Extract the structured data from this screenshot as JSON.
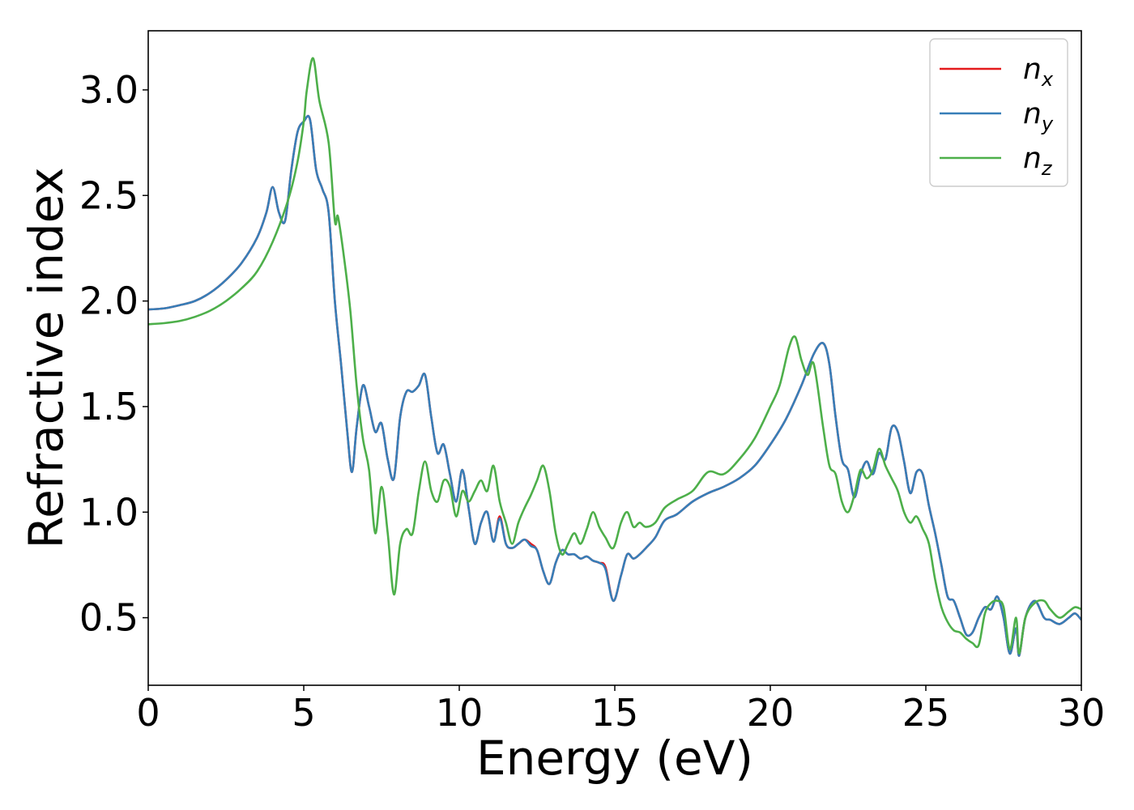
{
  "chart_data": {
    "type": "line",
    "title": "",
    "xlabel": "Energy (eV)",
    "ylabel": "Refractive index",
    "xlim": [
      0,
      30
    ],
    "ylim": [
      0.18,
      3.28
    ],
    "xticks": [
      0,
      5,
      10,
      15,
      20,
      25,
      30
    ],
    "xtick_labels": [
      "0",
      "5",
      "10",
      "15",
      "20",
      "25",
      "30"
    ],
    "yticks": [
      0.5,
      1.0,
      1.5,
      2.0,
      2.5,
      3.0
    ],
    "ytick_labels": [
      "0.5",
      "1.0",
      "1.5",
      "2.0",
      "2.5",
      "3.0"
    ],
    "grid": false,
    "legend_position": "top-right",
    "series": [
      {
        "name": "n",
        "subscript": "x",
        "color": "#e41a1c",
        "x": [
          0,
          0.5,
          1,
          1.5,
          2,
          2.5,
          3,
          3.5,
          3.8,
          4.0,
          4.2,
          4.4,
          4.6,
          4.8,
          5.0,
          5.2,
          5.4,
          5.6,
          5.8,
          6.0,
          6.2,
          6.4,
          6.55,
          6.7,
          6.9,
          7.1,
          7.3,
          7.5,
          7.7,
          7.9,
          8.1,
          8.3,
          8.5,
          8.7,
          8.9,
          9.1,
          9.3,
          9.5,
          9.7,
          9.9,
          10.1,
          10.3,
          10.5,
          10.7,
          10.9,
          11.1,
          11.3,
          11.5,
          11.7,
          11.9,
          12.1,
          12.3,
          12.5,
          12.7,
          12.9,
          13.1,
          13.3,
          13.5,
          13.7,
          13.9,
          14.1,
          14.3,
          14.5,
          14.7,
          14.95,
          15.2,
          15.4,
          15.6,
          15.8,
          16.0,
          16.3,
          16.6,
          17.0,
          17.5,
          18,
          18.5,
          19,
          19.5,
          20,
          20.5,
          21,
          21.4,
          21.7,
          21.9,
          22.1,
          22.3,
          22.5,
          22.7,
          22.9,
          23.1,
          23.3,
          23.5,
          23.7,
          23.9,
          24.1,
          24.3,
          24.5,
          24.7,
          24.9,
          25.1,
          25.3,
          25.5,
          25.7,
          25.9,
          26.1,
          26.3,
          26.5,
          26.7,
          26.9,
          27.1,
          27.3,
          27.5,
          27.7,
          27.9,
          28.0,
          28.2,
          28.5,
          28.8,
          29,
          29.3,
          29.6,
          29.8,
          30
        ],
        "y": [
          1.96,
          1.965,
          1.98,
          2.0,
          2.04,
          2.1,
          2.18,
          2.3,
          2.42,
          2.54,
          2.42,
          2.38,
          2.62,
          2.8,
          2.85,
          2.86,
          2.62,
          2.53,
          2.42,
          2.0,
          1.7,
          1.38,
          1.19,
          1.4,
          1.6,
          1.5,
          1.38,
          1.42,
          1.25,
          1.16,
          1.45,
          1.57,
          1.57,
          1.6,
          1.65,
          1.45,
          1.28,
          1.32,
          1.18,
          1.05,
          1.2,
          1.02,
          0.85,
          0.95,
          1.0,
          0.86,
          0.98,
          0.85,
          0.83,
          0.85,
          0.87,
          0.85,
          0.82,
          0.72,
          0.66,
          0.76,
          0.82,
          0.8,
          0.8,
          0.78,
          0.79,
          0.77,
          0.76,
          0.74,
          0.58,
          0.7,
          0.8,
          0.78,
          0.8,
          0.83,
          0.88,
          0.96,
          0.99,
          1.05,
          1.09,
          1.12,
          1.16,
          1.22,
          1.32,
          1.44,
          1.6,
          1.75,
          1.8,
          1.7,
          1.45,
          1.25,
          1.2,
          1.07,
          1.18,
          1.24,
          1.18,
          1.28,
          1.25,
          1.4,
          1.38,
          1.24,
          1.09,
          1.19,
          1.18,
          1.03,
          0.9,
          0.75,
          0.6,
          0.58,
          0.5,
          0.42,
          0.43,
          0.5,
          0.55,
          0.54,
          0.6,
          0.5,
          0.33,
          0.45,
          0.32,
          0.5,
          0.58,
          0.5,
          0.49,
          0.47,
          0.5,
          0.52,
          0.49
        ]
      },
      {
        "name": "n",
        "subscript": "y",
        "color": "#377eb8",
        "x": [
          0,
          0.5,
          1,
          1.5,
          2,
          2.5,
          3,
          3.5,
          3.8,
          4.0,
          4.2,
          4.4,
          4.6,
          4.8,
          5.0,
          5.2,
          5.4,
          5.6,
          5.8,
          6.0,
          6.2,
          6.4,
          6.55,
          6.7,
          6.9,
          7.1,
          7.3,
          7.5,
          7.7,
          7.9,
          8.1,
          8.3,
          8.5,
          8.7,
          8.9,
          9.1,
          9.3,
          9.5,
          9.7,
          9.9,
          10.1,
          10.3,
          10.5,
          10.7,
          10.9,
          11.1,
          11.3,
          11.5,
          11.7,
          11.9,
          12.1,
          12.3,
          12.5,
          12.7,
          12.9,
          13.1,
          13.3,
          13.5,
          13.7,
          13.9,
          14.1,
          14.3,
          14.5,
          14.7,
          14.95,
          15.2,
          15.4,
          15.6,
          15.8,
          16.0,
          16.3,
          16.6,
          17.0,
          17.5,
          18,
          18.5,
          19,
          19.5,
          20,
          20.5,
          21,
          21.4,
          21.7,
          21.9,
          22.1,
          22.3,
          22.5,
          22.7,
          22.9,
          23.1,
          23.3,
          23.5,
          23.7,
          23.9,
          24.1,
          24.3,
          24.5,
          24.7,
          24.9,
          25.1,
          25.3,
          25.5,
          25.7,
          25.9,
          26.1,
          26.3,
          26.5,
          26.7,
          26.9,
          27.1,
          27.3,
          27.5,
          27.7,
          27.9,
          28.0,
          28.2,
          28.5,
          28.8,
          29,
          29.3,
          29.6,
          29.8,
          30
        ],
        "y": [
          1.96,
          1.965,
          1.98,
          2.0,
          2.04,
          2.1,
          2.18,
          2.3,
          2.42,
          2.54,
          2.42,
          2.38,
          2.62,
          2.8,
          2.85,
          2.86,
          2.62,
          2.53,
          2.42,
          2.0,
          1.7,
          1.38,
          1.19,
          1.4,
          1.6,
          1.5,
          1.38,
          1.42,
          1.25,
          1.16,
          1.45,
          1.57,
          1.57,
          1.6,
          1.65,
          1.45,
          1.28,
          1.32,
          1.18,
          1.05,
          1.2,
          1.02,
          0.85,
          0.95,
          1.0,
          0.86,
          0.97,
          0.85,
          0.83,
          0.85,
          0.87,
          0.84,
          0.82,
          0.72,
          0.66,
          0.76,
          0.82,
          0.8,
          0.8,
          0.78,
          0.79,
          0.77,
          0.76,
          0.73,
          0.58,
          0.7,
          0.8,
          0.78,
          0.8,
          0.83,
          0.88,
          0.96,
          0.99,
          1.05,
          1.09,
          1.12,
          1.16,
          1.22,
          1.32,
          1.44,
          1.6,
          1.75,
          1.8,
          1.7,
          1.45,
          1.25,
          1.2,
          1.07,
          1.18,
          1.24,
          1.18,
          1.28,
          1.25,
          1.4,
          1.38,
          1.24,
          1.09,
          1.19,
          1.18,
          1.03,
          0.9,
          0.75,
          0.6,
          0.58,
          0.5,
          0.42,
          0.43,
          0.5,
          0.55,
          0.54,
          0.6,
          0.5,
          0.33,
          0.45,
          0.32,
          0.5,
          0.58,
          0.5,
          0.49,
          0.47,
          0.5,
          0.52,
          0.49
        ]
      },
      {
        "name": "n",
        "subscript": "z",
        "color": "#4daf4a",
        "x": [
          0,
          0.5,
          1,
          1.5,
          2,
          2.5,
          3,
          3.5,
          4.0,
          4.5,
          4.8,
          5.0,
          5.1,
          5.3,
          5.5,
          5.8,
          6.0,
          6.1,
          6.3,
          6.5,
          6.7,
          6.9,
          7.1,
          7.3,
          7.5,
          7.7,
          7.9,
          8.1,
          8.3,
          8.5,
          8.7,
          8.9,
          9.1,
          9.3,
          9.5,
          9.7,
          9.9,
          10.1,
          10.3,
          10.5,
          10.7,
          10.9,
          11.1,
          11.3,
          11.5,
          11.7,
          11.9,
          12.1,
          12.3,
          12.5,
          12.7,
          12.9,
          13.1,
          13.3,
          13.5,
          13.7,
          13.9,
          14.1,
          14.3,
          14.5,
          14.7,
          14.95,
          15.2,
          15.4,
          15.6,
          15.8,
          16.0,
          16.3,
          16.6,
          17.0,
          17.5,
          18,
          18.5,
          19,
          19.5,
          20,
          20.3,
          20.6,
          20.8,
          21.0,
          21.2,
          21.4,
          21.7,
          21.9,
          22.1,
          22.3,
          22.5,
          22.7,
          22.9,
          23.1,
          23.3,
          23.5,
          23.7,
          23.9,
          24.1,
          24.3,
          24.5,
          24.7,
          24.9,
          25.1,
          25.3,
          25.5,
          25.7,
          25.9,
          26.1,
          26.3,
          26.5,
          26.7,
          26.9,
          27.1,
          27.3,
          27.5,
          27.7,
          27.9,
          28.0,
          28.2,
          28.5,
          28.8,
          29,
          29.3,
          29.6,
          29.8,
          30
        ],
        "y": [
          1.89,
          1.895,
          1.905,
          1.925,
          1.955,
          2.0,
          2.06,
          2.14,
          2.28,
          2.48,
          2.66,
          2.85,
          3.0,
          3.15,
          2.95,
          2.75,
          2.38,
          2.4,
          2.2,
          1.95,
          1.6,
          1.35,
          1.2,
          0.9,
          1.12,
          0.9,
          0.61,
          0.85,
          0.92,
          0.9,
          1.1,
          1.24,
          1.1,
          1.05,
          1.15,
          1.12,
          0.98,
          1.1,
          1.05,
          1.1,
          1.15,
          1.1,
          1.22,
          1.05,
          0.95,
          0.85,
          0.95,
          1.02,
          1.08,
          1.15,
          1.22,
          1.1,
          0.9,
          0.8,
          0.85,
          0.9,
          0.85,
          0.92,
          1.0,
          0.93,
          0.88,
          0.83,
          0.95,
          1.0,
          0.93,
          0.95,
          0.93,
          0.95,
          1.02,
          1.06,
          1.1,
          1.19,
          1.18,
          1.25,
          1.35,
          1.5,
          1.6,
          1.78,
          1.83,
          1.72,
          1.65,
          1.7,
          1.4,
          1.22,
          1.18,
          1.05,
          1.0,
          1.08,
          1.2,
          1.16,
          1.2,
          1.3,
          1.22,
          1.16,
          1.1,
          1.0,
          0.95,
          0.98,
          0.92,
          0.85,
          0.68,
          0.55,
          0.48,
          0.44,
          0.43,
          0.4,
          0.38,
          0.37,
          0.52,
          0.57,
          0.58,
          0.55,
          0.35,
          0.5,
          0.33,
          0.5,
          0.57,
          0.58,
          0.54,
          0.5,
          0.53,
          0.55,
          0.54
        ]
      }
    ]
  }
}
